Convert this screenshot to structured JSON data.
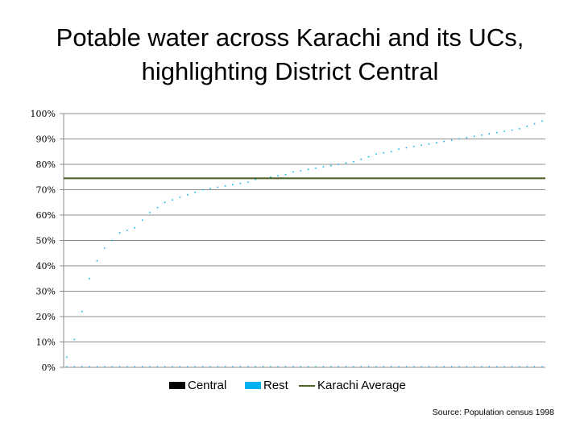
{
  "chart_data": {
    "type": "scatter",
    "title_line1": "Potable water across Karachi and its UCs,",
    "title_line2": "highlighting District Central",
    "ylim": [
      0,
      100
    ],
    "yticks": [
      "0%",
      "10%",
      "20%",
      "30%",
      "40%",
      "50%",
      "60%",
      "70%",
      "80%",
      "90%",
      "100%"
    ],
    "grid": true,
    "legend_placement": "bottom",
    "series": [
      {
        "name": "Central",
        "color": "#000000",
        "values": []
      },
      {
        "name": "Rest",
        "color": "#00b0f0",
        "values": [
          4,
          11,
          22,
          35,
          42,
          47,
          50,
          53,
          54,
          55,
          58,
          61,
          63,
          65,
          66,
          67,
          68,
          69,
          70,
          70.5,
          71,
          71.5,
          72,
          72.5,
          73,
          74,
          74.5,
          75,
          75.5,
          76,
          77,
          77.5,
          78,
          78.5,
          79,
          79.5,
          80,
          80.5,
          81,
          82,
          83,
          84,
          84.5,
          85,
          86,
          86.5,
          87,
          87.5,
          88,
          88.5,
          89,
          89.5,
          90,
          90.5,
          91,
          91.5,
          92,
          92.5,
          93,
          93.5,
          94,
          95,
          96,
          97
        ]
      },
      {
        "name": "Karachi Average",
        "color": "#4f6228",
        "value": 74.5
      }
    ],
    "source": "Source: Population census 1998"
  }
}
